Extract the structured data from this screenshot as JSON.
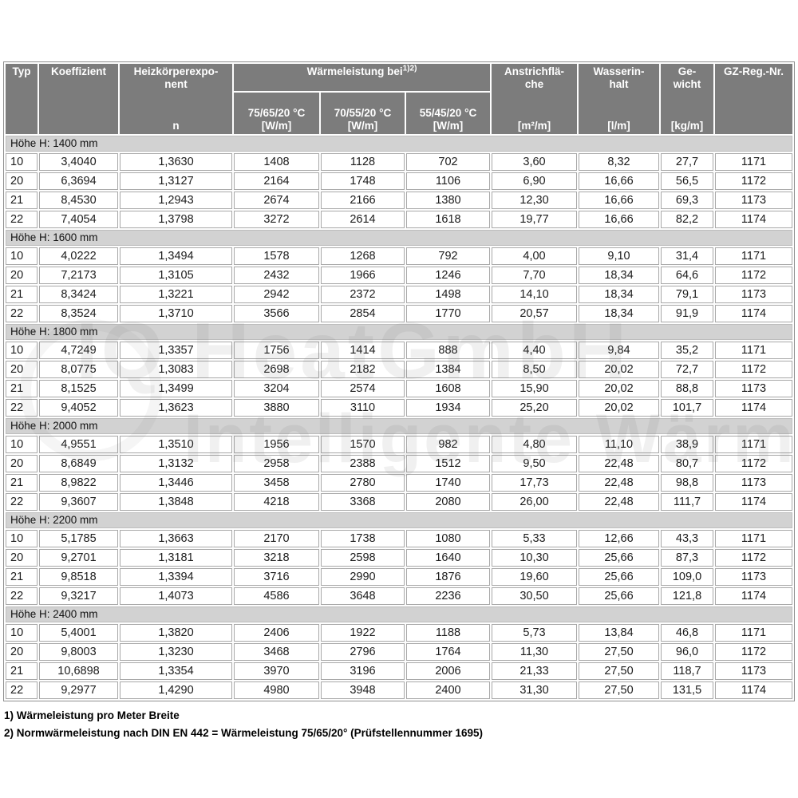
{
  "table": {
    "header": {
      "typ": "Typ",
      "koeffizient": "Koeffizient",
      "exponent_label": "Heizkörperexpo-\nnent",
      "exponent_unit": "n",
      "group_title": "Wärmeleistung bei",
      "group_sup": "1)2)",
      "temp_cols": [
        {
          "label": "75/65/20 °C",
          "unit": "[W/m]"
        },
        {
          "label": "70/55/20 °C",
          "unit": "[W/m]"
        },
        {
          "label": "55/45/20 °C",
          "unit": "[W/m]"
        }
      ],
      "anstrich_label": "Anstrichflä-\nche",
      "anstrich_unit": "[m²/m]",
      "wasser_label": "Wasserin-\nhalt",
      "wasser_unit": "[l/m]",
      "gewicht_label": "Ge-\nwicht",
      "gewicht_unit": "[kg/m]",
      "gz": "GZ-Reg.-Nr."
    },
    "sections": [
      {
        "title": "Höhe H: 1400 mm",
        "rows": [
          [
            "10",
            "3,4040",
            "1,3630",
            "1408",
            "1128",
            "702",
            "3,60",
            "8,32",
            "27,7",
            "1171"
          ],
          [
            "20",
            "6,3694",
            "1,3127",
            "2164",
            "1748",
            "1106",
            "6,90",
            "16,66",
            "56,5",
            "1172"
          ],
          [
            "21",
            "8,4530",
            "1,2943",
            "2674",
            "2166",
            "1380",
            "12,30",
            "16,66",
            "69,3",
            "1173"
          ],
          [
            "22",
            "7,4054",
            "1,3798",
            "3272",
            "2614",
            "1618",
            "19,77",
            "16,66",
            "82,2",
            "1174"
          ]
        ]
      },
      {
        "title": "Höhe H: 1600 mm",
        "rows": [
          [
            "10",
            "4,0222",
            "1,3494",
            "1578",
            "1268",
            "792",
            "4,00",
            "9,10",
            "31,4",
            "1171"
          ],
          [
            "20",
            "7,2173",
            "1,3105",
            "2432",
            "1966",
            "1246",
            "7,70",
            "18,34",
            "64,6",
            "1172"
          ],
          [
            "21",
            "8,3424",
            "1,3221",
            "2942",
            "2372",
            "1498",
            "14,10",
            "18,34",
            "79,1",
            "1173"
          ],
          [
            "22",
            "8,3524",
            "1,3710",
            "3566",
            "2854",
            "1770",
            "20,57",
            "18,34",
            "91,9",
            "1174"
          ]
        ]
      },
      {
        "title": "Höhe H: 1800 mm",
        "rows": [
          [
            "10",
            "4,7249",
            "1,3357",
            "1756",
            "1414",
            "888",
            "4,40",
            "9,84",
            "35,2",
            "1171"
          ],
          [
            "20",
            "8,0775",
            "1,3083",
            "2698",
            "2182",
            "1384",
            "8,50",
            "20,02",
            "72,7",
            "1172"
          ],
          [
            "21",
            "8,1525",
            "1,3499",
            "3204",
            "2574",
            "1608",
            "15,90",
            "20,02",
            "88,8",
            "1173"
          ],
          [
            "22",
            "9,4052",
            "1,3623",
            "3880",
            "3110",
            "1934",
            "25,20",
            "20,02",
            "101,7",
            "1174"
          ]
        ]
      },
      {
        "title": "Höhe H: 2000 mm",
        "rows": [
          [
            "10",
            "4,9551",
            "1,3510",
            "1956",
            "1570",
            "982",
            "4,80",
            "11,10",
            "38,9",
            "1171"
          ],
          [
            "20",
            "8,6849",
            "1,3132",
            "2958",
            "2388",
            "1512",
            "9,50",
            "22,48",
            "80,7",
            "1172"
          ],
          [
            "21",
            "8,9822",
            "1,3446",
            "3458",
            "2780",
            "1740",
            "17,73",
            "22,48",
            "98,8",
            "1173"
          ],
          [
            "22",
            "9,3607",
            "1,3848",
            "4218",
            "3368",
            "2080",
            "26,00",
            "22,48",
            "111,7",
            "1174"
          ]
        ]
      },
      {
        "title": "Höhe H: 2200 mm",
        "rows": [
          [
            "10",
            "5,1785",
            "1,3663",
            "2170",
            "1738",
            "1080",
            "5,33",
            "12,66",
            "43,3",
            "1171"
          ],
          [
            "20",
            "9,2701",
            "1,3181",
            "3218",
            "2598",
            "1640",
            "10,30",
            "25,66",
            "87,3",
            "1172"
          ],
          [
            "21",
            "9,8518",
            "1,3394",
            "3716",
            "2990",
            "1876",
            "19,60",
            "25,66",
            "109,0",
            "1173"
          ],
          [
            "22",
            "9,3217",
            "1,4073",
            "4586",
            "3648",
            "2236",
            "30,50",
            "25,66",
            "121,8",
            "1174"
          ]
        ]
      },
      {
        "title": "Höhe H: 2400 mm",
        "rows": [
          [
            "10",
            "5,4001",
            "1,3820",
            "2406",
            "1922",
            "1188",
            "5,73",
            "13,84",
            "46,8",
            "1171"
          ],
          [
            "20",
            "9,8003",
            "1,3230",
            "3468",
            "2796",
            "1764",
            "11,30",
            "27,50",
            "96,0",
            "1172"
          ],
          [
            "21",
            "10,6898",
            "1,3354",
            "3970",
            "3196",
            "2006",
            "21,33",
            "27,50",
            "118,7",
            "1173"
          ],
          [
            "22",
            "9,2977",
            "1,4290",
            "4980",
            "3948",
            "2400",
            "31,30",
            "27,50",
            "131,5",
            "1174"
          ]
        ]
      }
    ]
  },
  "footnotes": {
    "note1": "1) Wärmeleistung pro Meter Breite",
    "note2": "2) Normwärmeleistung nach DIN EN 442 = Wärmeleistung 75/65/20° (Prüfstellennummer 1695)"
  },
  "watermark": {
    "line1": "IQ HeatGmbH",
    "line2": "Intelligente Wärme"
  },
  "colors": {
    "header_bg": "#7c7c7c",
    "header_text": "#ffffff",
    "section_bg": "#d2d2d2",
    "cell_border": "#a9a9a9",
    "data_text": "#1c1c1c"
  }
}
